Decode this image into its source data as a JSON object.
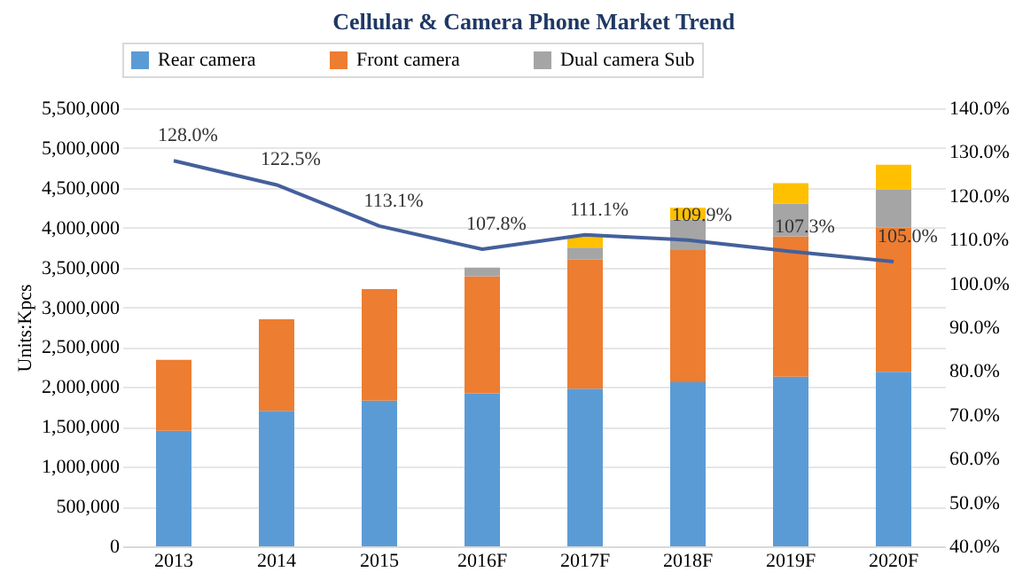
{
  "chart_data": {
    "type": "bar",
    "title": "Cellular & Camera Phone Market Trend",
    "ylabel": "Units:Kpcs",
    "categories": [
      "2013",
      "2014",
      "2015",
      "2016F",
      "2017F",
      "2018F",
      "2019F",
      "2020F"
    ],
    "stacked": true,
    "grid": "y",
    "legend": "top",
    "ylim": [
      0,
      5500000
    ],
    "yticks": [
      {
        "value": 0,
        "label": "0"
      },
      {
        "value": 500000,
        "label": "500,000"
      },
      {
        "value": 1000000,
        "label": "1,000,000"
      },
      {
        "value": 1500000,
        "label": "1,500,000"
      },
      {
        "value": 2000000,
        "label": "2,000,000"
      },
      {
        "value": 2500000,
        "label": "2,500,000"
      },
      {
        "value": 3000000,
        "label": "3,000,000"
      },
      {
        "value": 3500000,
        "label": "3,500,000"
      },
      {
        "value": 4000000,
        "label": "4,000,000"
      },
      {
        "value": 4500000,
        "label": "4,500,000"
      },
      {
        "value": 5000000,
        "label": "5,000,000"
      },
      {
        "value": 5500000,
        "label": "5,500,000"
      }
    ],
    "y2lim": [
      40,
      140
    ],
    "y2ticks": [
      {
        "value": 40,
        "label": "40.0%"
      },
      {
        "value": 50,
        "label": "50.0%"
      },
      {
        "value": 60,
        "label": "60.0%"
      },
      {
        "value": 70,
        "label": "70.0%"
      },
      {
        "value": 80,
        "label": "80.0%"
      },
      {
        "value": 90,
        "label": "90.0%"
      },
      {
        "value": 100,
        "label": "100.0%"
      },
      {
        "value": 110,
        "label": "110.0%"
      },
      {
        "value": 120,
        "label": "120.0%"
      },
      {
        "value": 130,
        "label": "130.0%"
      },
      {
        "value": 140,
        "label": "140.0%"
      }
    ],
    "series": [
      {
        "name": "Rear camera",
        "color": "#5b9bd5",
        "values": [
          1450000,
          1700000,
          1830000,
          1920000,
          1980000,
          2060000,
          2130000,
          2190000
        ]
      },
      {
        "name": "Front camera",
        "color": "#ed7d31",
        "values": [
          890000,
          1150000,
          1400000,
          1470000,
          1620000,
          1660000,
          1760000,
          1810000
        ]
      },
      {
        "name": "Dual camera Sub",
        "color": "#a5a5a5",
        "values": [
          null,
          null,
          null,
          110000,
          150000,
          380000,
          410000,
          480000
        ]
      },
      {
        "color": "#ffc000",
        "values": [
          null,
          null,
          null,
          null,
          150000,
          150000,
          260000,
          310000
        ]
      },
      {
        "type": "line",
        "axis": "y2",
        "color": "#44609c",
        "marker": "none",
        "data_labels": true,
        "value_labels": [
          "128.0%",
          "122.5%",
          "113.1%",
          "107.8%",
          "111.1%",
          "109.9%",
          "107.3%",
          "105.0%"
        ],
        "values": [
          128.0,
          122.5,
          113.1,
          107.8,
          111.1,
          109.9,
          107.3,
          105.0
        ]
      }
    ]
  }
}
